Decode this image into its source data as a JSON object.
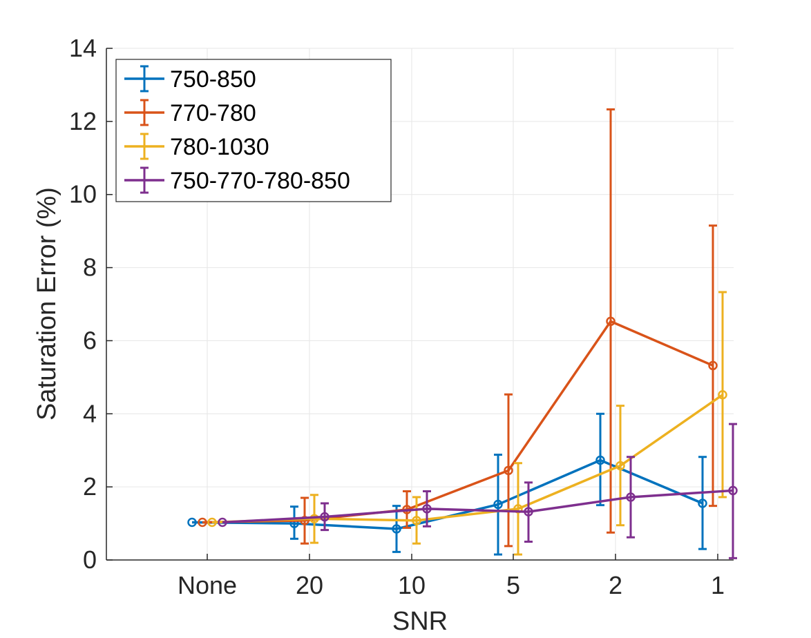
{
  "chart_data": {
    "type": "line",
    "title": "",
    "xlabel": "SNR",
    "ylabel": "Saturation Error (%)",
    "categories": [
      "None",
      "20",
      "10",
      "5",
      "2",
      "1"
    ],
    "ylim": [
      0,
      14
    ],
    "yticks": [
      "0",
      "2",
      "4",
      "6",
      "8",
      "10",
      "12",
      "14"
    ],
    "grid": true,
    "legend_position": "top-left",
    "series": [
      {
        "name": "750-850",
        "color": "#0072BD",
        "values": [
          1.03,
          1.0,
          0.85,
          1.52,
          2.73,
          1.55
        ],
        "lower": [
          1.03,
          0.58,
          0.22,
          0.15,
          1.5,
          0.3
        ],
        "upper": [
          1.03,
          1.46,
          1.48,
          2.88,
          4.0,
          2.82
        ]
      },
      {
        "name": "770-780",
        "color": "#D95319",
        "values": [
          1.03,
          1.08,
          1.38,
          2.45,
          6.53,
          5.32
        ],
        "lower": [
          1.03,
          0.45,
          0.88,
          0.38,
          0.75,
          1.48
        ],
        "upper": [
          1.03,
          1.7,
          1.88,
          4.53,
          12.33,
          9.15
        ]
      },
      {
        "name": "780-1030",
        "color": "#EDB120",
        "values": [
          1.03,
          1.13,
          1.08,
          1.4,
          2.58,
          4.52
        ],
        "lower": [
          1.03,
          0.47,
          0.45,
          0.15,
          0.95,
          1.72
        ],
        "upper": [
          1.03,
          1.78,
          1.72,
          2.65,
          4.22,
          7.33
        ]
      },
      {
        "name": "750-770-780-850",
        "color": "#7E2F8E",
        "values": [
          1.03,
          1.18,
          1.4,
          1.32,
          1.72,
          1.9
        ],
        "lower": [
          1.03,
          0.82,
          0.92,
          0.5,
          0.62,
          0.05
        ],
        "upper": [
          1.03,
          1.55,
          1.88,
          2.12,
          2.82,
          3.72
        ]
      }
    ]
  }
}
